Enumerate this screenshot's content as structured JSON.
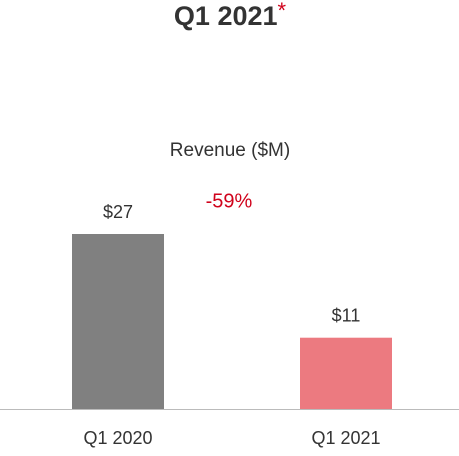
{
  "chart_data": {
    "type": "bar",
    "title": "Q1 2021",
    "title_note": "*",
    "subtitle": "Revenue ($M)",
    "annotation": "-59%",
    "categories": [
      "Q1 2020",
      "Q1 2021"
    ],
    "values": [
      27,
      11
    ],
    "value_labels": [
      "$27",
      "$11"
    ],
    "colors": [
      "#808080",
      "#ec7a80"
    ],
    "note_color": "#d0021b"
  }
}
